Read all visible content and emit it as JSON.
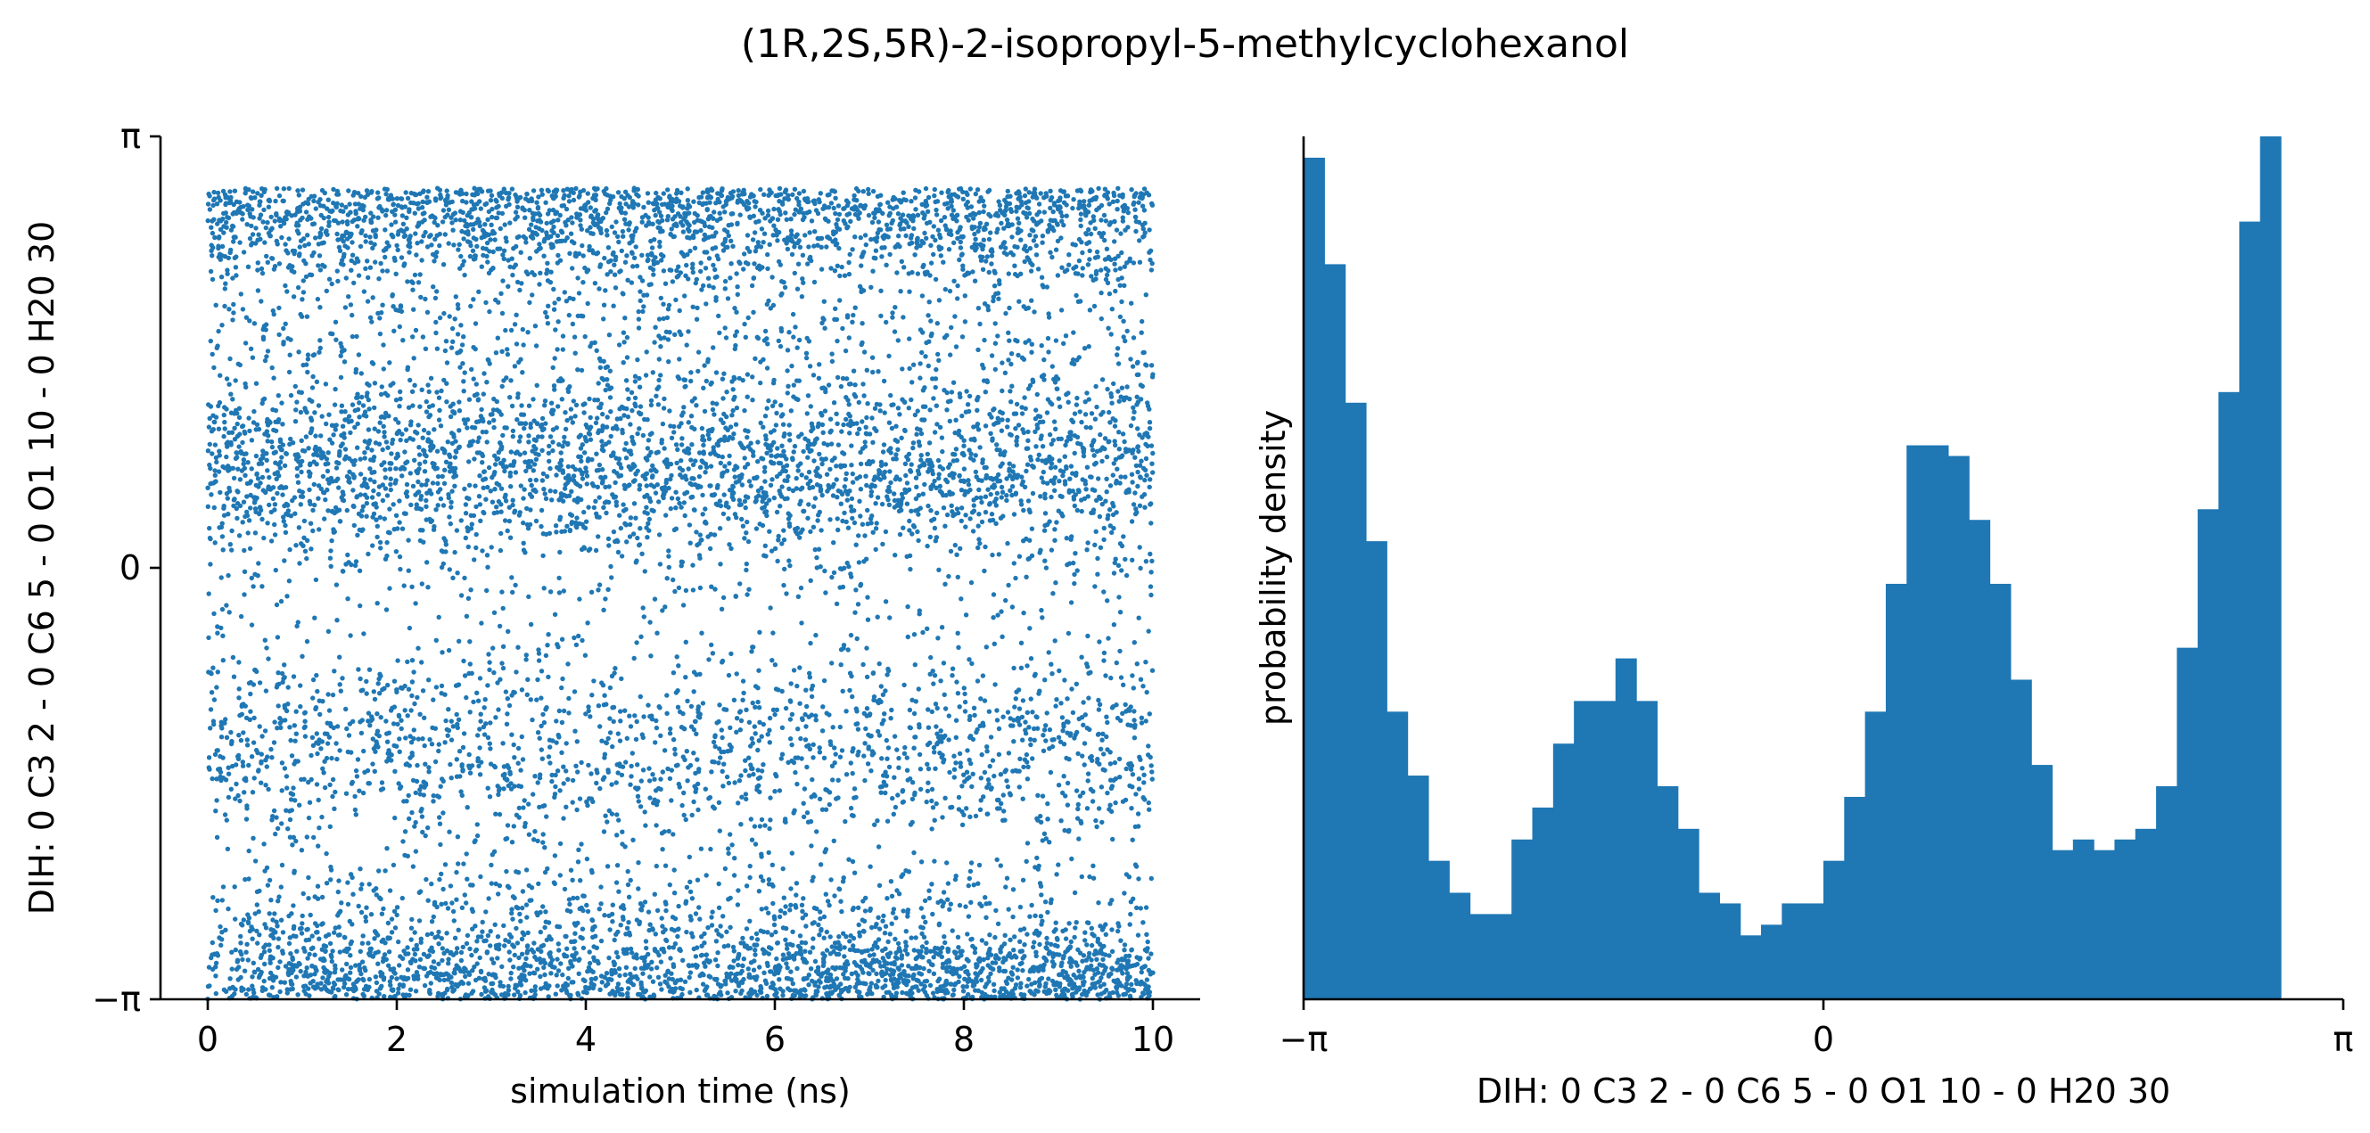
{
  "figure": {
    "title": "(1R,2S,5R)-2-isopropyl-5-methylcyclohexanol",
    "color": "#1f77b4"
  },
  "chart_data": [
    {
      "type": "scatter",
      "xlabel": "simulation time (ns)",
      "ylabel": "DIH:  0 C3 2 -  0 C6 5 -  0 O1 10 -  0 H20 30",
      "xlim": [
        -0.5,
        10.5
      ],
      "ylim": [
        -3.14159,
        3.14159
      ],
      "x_ticks": [
        0,
        2,
        4,
        6,
        8,
        10
      ],
      "x_tick_labels": [
        "0",
        "2",
        "4",
        "6",
        "8",
        "10"
      ],
      "y_ticks": [
        -3.14159,
        0,
        3.14159
      ],
      "y_tick_labels": [
        "−π",
        "0",
        "π"
      ],
      "n_points_approx": 10000,
      "density_profile": {
        "description": "angle distribution of frames over time, matches the histogram",
        "angle_bin_edges_start": -3.14159,
        "angle_bin_width": 0.12566,
        "relative_density": [
          79,
          69,
          56,
          43,
          27,
          21,
          13,
          10,
          8,
          8,
          15,
          18,
          24,
          28,
          28,
          32,
          28,
          20,
          16,
          10,
          9,
          6,
          7,
          9,
          9,
          13,
          19,
          27,
          39,
          52,
          52,
          51,
          45,
          39,
          30,
          22,
          14,
          15,
          14,
          15,
          16,
          20,
          33,
          46,
          57,
          73,
          81
        ],
        "time_trend_note": "denser near -π at later times (6.5–10 ns)"
      },
      "grid": false,
      "legend": "none"
    },
    {
      "type": "bar",
      "subtype": "histogram",
      "xlabel": "DIH:  0 C3 2 -  0 C6 5 -  0 O1 10 -  0 H20 30",
      "ylabel": "probability density",
      "xlim": [
        -3.14159,
        3.14159
      ],
      "x_ticks": [
        -3.14159,
        0,
        3.14159
      ],
      "x_tick_labels": [
        "−π",
        "0",
        "π"
      ],
      "bin_start": -3.14159,
      "bin_width": 0.12566,
      "values": [
        79,
        69,
        56,
        43,
        27,
        21,
        13,
        10,
        8,
        8,
        15,
        18,
        24,
        28,
        28,
        32,
        28,
        20,
        16,
        10,
        9,
        6,
        7,
        9,
        9,
        13,
        19,
        27,
        39,
        52,
        52,
        51,
        45,
        39,
        30,
        22,
        14,
        15,
        14,
        15,
        16,
        20,
        33,
        46,
        57,
        73,
        81
      ],
      "values_note": "relative bar heights (arbitrary density units; y axis has no tick labels)",
      "ylim": [
        0,
        81
      ],
      "grid": false,
      "legend": "none"
    }
  ]
}
